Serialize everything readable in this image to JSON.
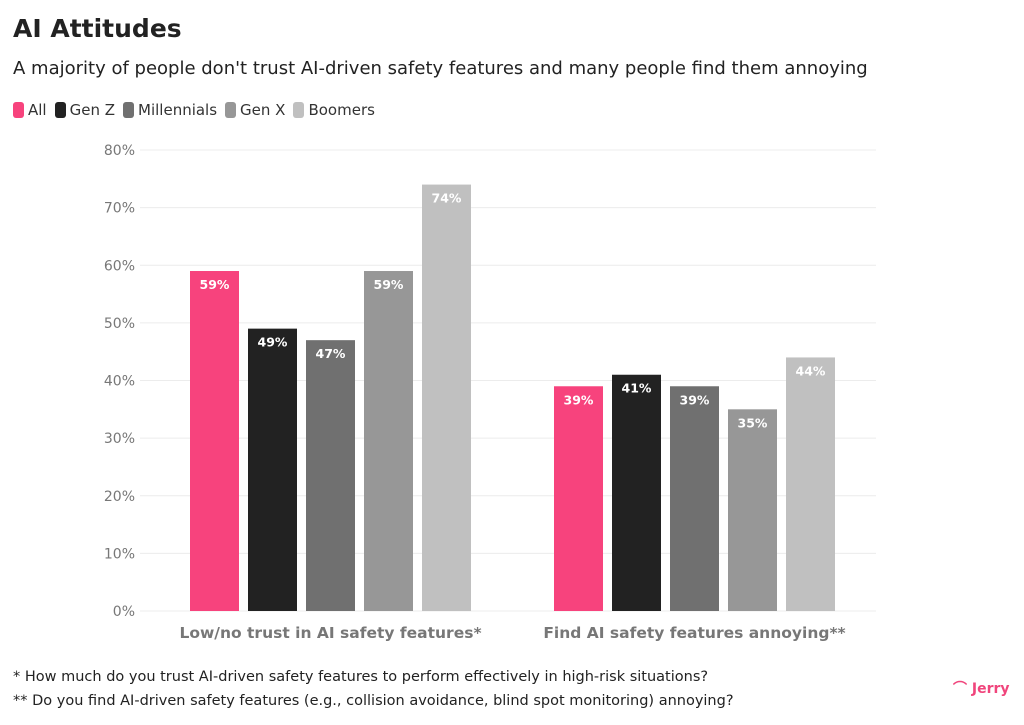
{
  "title": "AI Attitudes",
  "subtitle": "A majority of people don't trust AI-driven safety features and many people find them annoying",
  "footnotes": [
    "* How much do you trust AI-driven safety features to perform effectively in high-risk situations?",
    "** Do you find AI-driven safety features (e.g., collision avoidance, blind spot monitoring) annoying?"
  ],
  "logo": "Jerry",
  "chart_data": {
    "type": "bar",
    "categories": [
      "Low/no trust in AI safety features*",
      "Find AI safety features annoying**"
    ],
    "series": [
      {
        "name": "All",
        "color": "#f7437d",
        "values": [
          59,
          39
        ]
      },
      {
        "name": "Gen Z",
        "color": "#222222",
        "values": [
          49,
          41
        ]
      },
      {
        "name": "Millennials",
        "color": "#707070",
        "values": [
          47,
          39
        ]
      },
      {
        "name": "Gen X",
        "color": "#979797",
        "values": [
          59,
          35
        ]
      },
      {
        "name": "Boomers",
        "color": "#c0c0c0",
        "values": [
          74,
          44
        ]
      }
    ],
    "ylim": [
      0,
      80
    ],
    "yticks": [
      "0%",
      "10%",
      "20%",
      "30%",
      "40%",
      "50%",
      "60%",
      "70%",
      "80%"
    ],
    "value_suffix": "%",
    "grid": true,
    "legend": "top-left"
  }
}
